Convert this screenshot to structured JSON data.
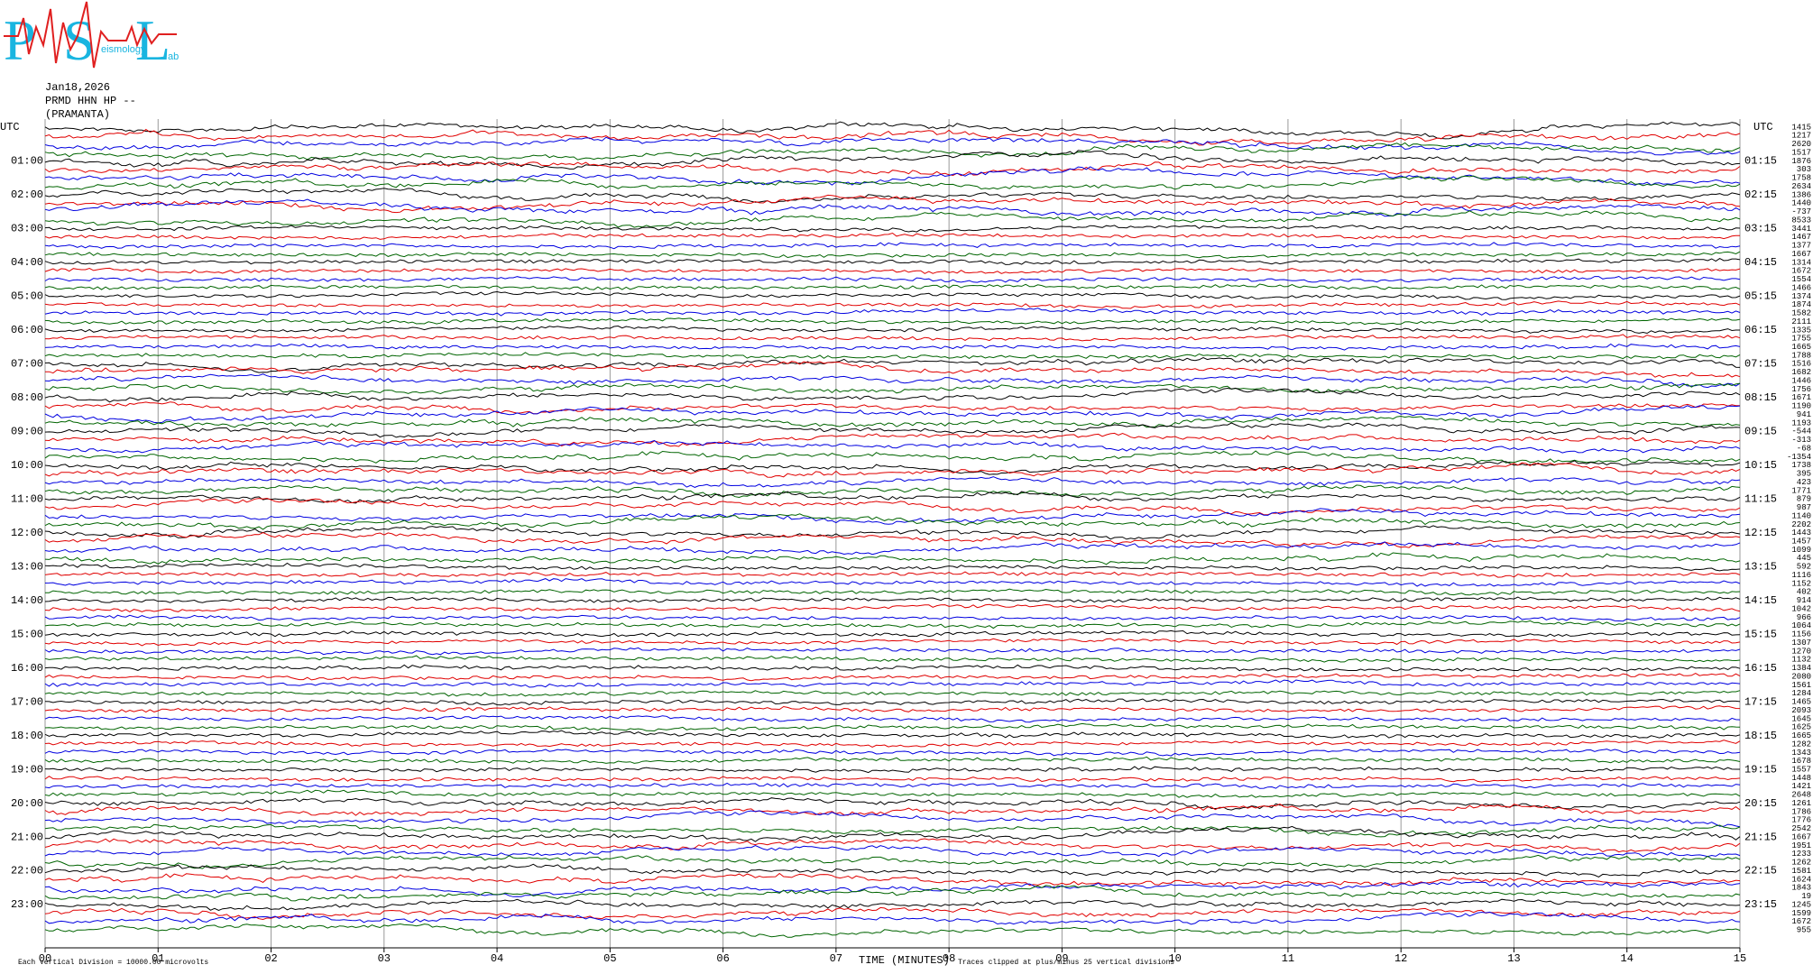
{
  "logo": {
    "letters": [
      "P",
      "S",
      "L"
    ],
    "small_texts": [
      "eismology",
      "ab"
    ]
  },
  "header": {
    "date": "Jan18,2026",
    "station": "PRMD HHN HP --",
    "site": "(PRAMANTA)"
  },
  "left_axis": {
    "title": "UTC",
    "labels": [
      "01:00",
      "02:00",
      "03:00",
      "04:00",
      "05:00",
      "06:00",
      "07:00",
      "08:00",
      "09:00",
      "10:00",
      "11:00",
      "12:00",
      "13:00",
      "14:00",
      "15:00",
      "16:00",
      "17:00",
      "18:00",
      "19:00",
      "20:00",
      "21:00",
      "22:00",
      "23:00"
    ]
  },
  "right_axis": {
    "title": "UTC",
    "labels": [
      "01:15",
      "02:15",
      "03:15",
      "04:15",
      "05:15",
      "06:15",
      "07:15",
      "08:15",
      "09:15",
      "10:15",
      "11:15",
      "12:15",
      "13:15",
      "14:15",
      "15:15",
      "16:15",
      "17:15",
      "18:15",
      "19:15",
      "20:15",
      "21:15",
      "22:15",
      "23:15"
    ]
  },
  "row_values": [
    "1415",
    "1217",
    "2620",
    "1517",
    "1876",
    "303",
    "1758",
    "2634",
    "1386",
    "1440",
    "-737",
    "8533",
    "3441",
    "1467",
    "1377",
    "1667",
    "1314",
    "1672",
    "1554",
    "1466",
    "1374",
    "1874",
    "1582",
    "2111",
    "1335",
    "1755",
    "1665",
    "1788",
    "1516",
    "1682",
    "1446",
    "1756",
    "1671",
    "1190",
    "941",
    "1193",
    "-544",
    "-313",
    "-68",
    "-1354",
    "1738",
    "395",
    "423",
    "1771",
    "879",
    "987",
    "1140",
    "2202",
    "1443",
    "1457",
    "1099",
    "445",
    "592",
    "1116",
    "1152",
    "402",
    "914",
    "1042",
    "966",
    "1064",
    "1156",
    "1307",
    "1270",
    "1132",
    "1384",
    "2080",
    "1561",
    "1284",
    "1465",
    "2093",
    "1645",
    "1625",
    "1665",
    "1282",
    "1343",
    "1678",
    "1557",
    "1448",
    "1421",
    "2648",
    "1261",
    "1786",
    "1776",
    "2542",
    "1667",
    "1951",
    "1233",
    "1262",
    "1581",
    "1624",
    "1843",
    "19",
    "1245",
    "1599",
    "1672",
    "955"
  ],
  "x_axis": {
    "labels": [
      "00",
      "01",
      "02",
      "03",
      "04",
      "05",
      "06",
      "07",
      "08",
      "09",
      "10",
      "11",
      "12",
      "13",
      "14",
      "15"
    ],
    "title": "TIME (MINUTES)"
  },
  "footer": {
    "scale_note": "Each Vertical Division = 10000.00 microvolts",
    "clip_note": "Traces clipped at plus/minus 25 vertical divisions"
  }
}
